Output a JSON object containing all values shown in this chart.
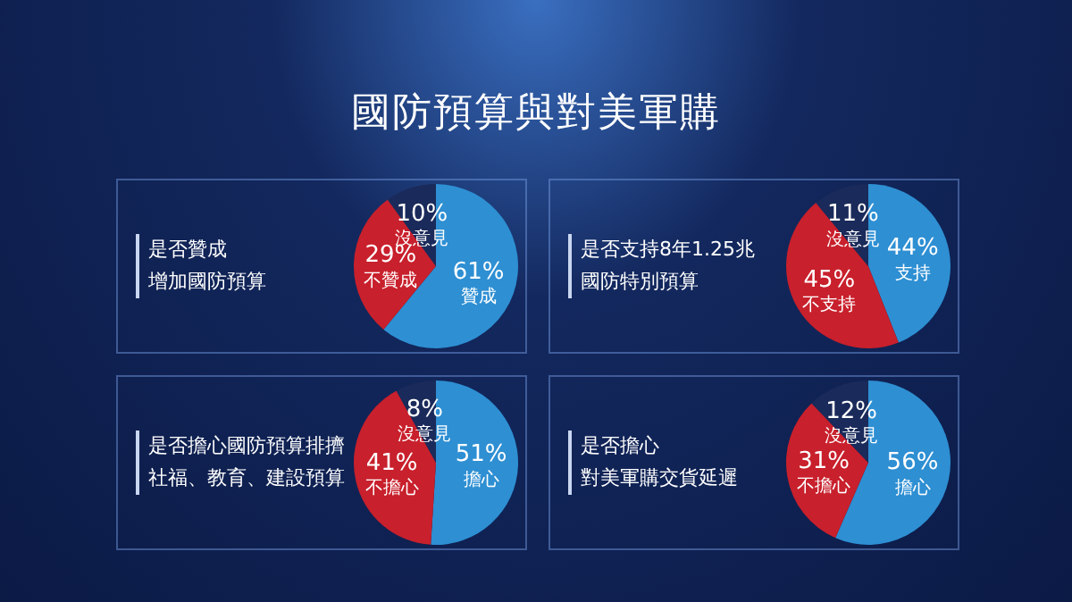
{
  "chart_data": [
    {
      "type": "pie",
      "title": "是否贊成",
      "subtitle": "增加國防預算",
      "annotations": [
        "國防預算與對美軍購"
      ],
      "categories": [
        "贊成",
        "不贊成",
        "沒意見"
      ],
      "values": [
        61,
        29,
        10
      ],
      "value_labels": [
        "61%",
        "29%",
        "10%"
      ],
      "colors": [
        "#2e8fd3",
        "#c8202c",
        "#1a2a5a"
      ],
      "legend": false
    },
    {
      "type": "pie",
      "title": "是否支持8年1.25兆",
      "subtitle": "國防特別預算",
      "categories": [
        "支持",
        "不支持",
        "沒意見"
      ],
      "values": [
        44,
        45,
        11
      ],
      "value_labels": [
        "44%",
        "45%",
        "11%"
      ],
      "colors": [
        "#2e8fd3",
        "#c8202c",
        "#1a2a5a"
      ],
      "legend": false
    },
    {
      "type": "pie",
      "title": "是否擔心國防預算排擠",
      "subtitle": "社福、教育、建設預算",
      "categories": [
        "擔心",
        "不擔心",
        "沒意見"
      ],
      "values": [
        51,
        41,
        8
      ],
      "value_labels": [
        "51%",
        "41%",
        "8%"
      ],
      "colors": [
        "#2e8fd3",
        "#c8202c",
        "#1a2a5a"
      ],
      "legend": false
    },
    {
      "type": "pie",
      "title": "是否擔心",
      "subtitle": "對美軍購交貨延遲",
      "categories": [
        "擔心",
        "不擔心",
        "沒意見"
      ],
      "values": [
        56,
        31,
        12
      ],
      "value_labels": [
        "56%",
        "31%",
        "12%"
      ],
      "colors": [
        "#2e8fd3",
        "#c8202c",
        "#1a2a5a"
      ],
      "legend": false
    }
  ]
}
